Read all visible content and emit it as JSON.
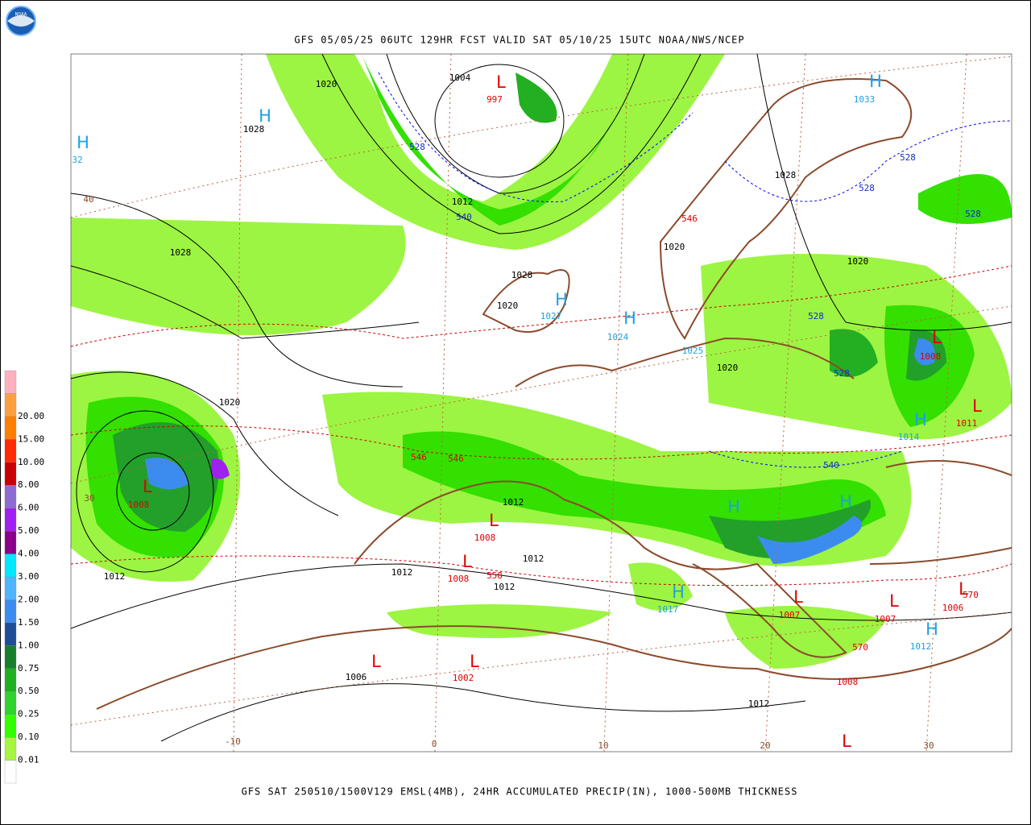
{
  "header": {
    "title": "GFS 05/05/25 06UTC 129HR FCST VALID SAT 05/10/25 15UTC NOAA/NWS/NCEP"
  },
  "footer": {
    "caption": "GFS SAT 250510/1500V129 EMSL(4MB), 24HR ACCUMULATED PRECIP(IN), 1000-500MB THICKNESS"
  },
  "logo": {
    "text": "NOAA"
  },
  "legend": {
    "labels": [
      "0.01",
      "0.10",
      "0.25",
      "0.50",
      "0.75",
      "1.00",
      "1.50",
      "2.00",
      "3.00",
      "4.00",
      "5.00",
      "6.00",
      "8.00",
      "10.00",
      "15.00",
      "20.00"
    ]
  },
  "map": {
    "labels": [
      "L",
      "997",
      "1004",
      "1020",
      "H",
      "1028",
      "H",
      "32",
      "40",
      "528",
      "1012",
      "540",
      "1028",
      "H",
      "1033",
      "1028",
      "528",
      "528",
      "528",
      "546",
      "1020",
      "1020",
      "1028",
      "1020",
      "H",
      "1027",
      "H",
      "1024",
      "1025",
      "1020",
      "528",
      "528",
      "L",
      "1008",
      "1020",
      "L",
      "1011",
      "H",
      "1014",
      "546",
      "546",
      "540",
      "L",
      "1008",
      "30",
      "1012",
      "L",
      "1008",
      "H",
      "H",
      "1012",
      "L",
      "1008",
      "558",
      "1012",
      "1012",
      "1012",
      "H",
      "1017",
      "L",
      "1007",
      "L",
      "1007",
      "L",
      "1006",
      "570",
      "H",
      "1012",
      "570",
      "L",
      "L",
      "1006",
      "1002",
      "1008",
      "1012",
      "-10",
      "0",
      "10",
      "20",
      "30",
      "L"
    ]
  }
}
